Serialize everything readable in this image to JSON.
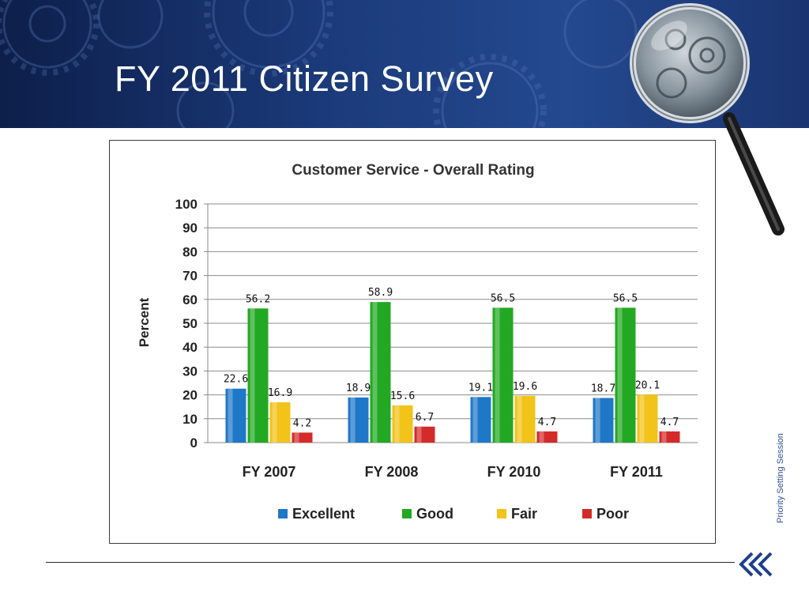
{
  "slide": {
    "title": "FY 2011 Citizen Survey",
    "side_label": "Priority Setting Session"
  },
  "colors": {
    "header_dark": "#0d1f4a",
    "header_mid": "#24498f",
    "title_text": "#ffffff",
    "side_label": "#2a4f9e"
  },
  "icons": [
    "magnifying-glass-icon",
    "double-chevron-left-icon"
  ],
  "chart_data": {
    "type": "bar",
    "title": "Customer Service - Overall Rating",
    "ylabel": "Percent",
    "xlabel": "",
    "ylim": [
      0,
      100
    ],
    "yticks": [
      0,
      10,
      20,
      30,
      40,
      50,
      60,
      70,
      80,
      90,
      100
    ],
    "grid": true,
    "legend_position": "bottom",
    "categories": [
      "FY 2007",
      "FY 2008",
      "FY 2010",
      "FY 2011"
    ],
    "series": [
      {
        "name": "Excellent",
        "color": "#1f77c8",
        "values": [
          22.6,
          18.9,
          19.1,
          18.7
        ],
        "labels": [
          "22.6",
          "18.9",
          "19.1",
          "18.7"
        ]
      },
      {
        "name": "Good",
        "color": "#22a822",
        "values": [
          56.2,
          58.9,
          56.5,
          56.5
        ],
        "labels": [
          "56.2",
          "58.9",
          "56.5",
          "56.5"
        ]
      },
      {
        "name": "Fair",
        "color": "#f2c318",
        "values": [
          16.9,
          15.6,
          19.6,
          20.1
        ],
        "labels": [
          "16.9",
          "15.6",
          "19.6",
          "20.1"
        ]
      },
      {
        "name": "Poor",
        "color": "#d42a2a",
        "values": [
          4.2,
          6.7,
          4.7,
          4.7
        ],
        "labels": [
          "4.2",
          "6.7",
          "4.7",
          "4.7"
        ]
      }
    ]
  }
}
